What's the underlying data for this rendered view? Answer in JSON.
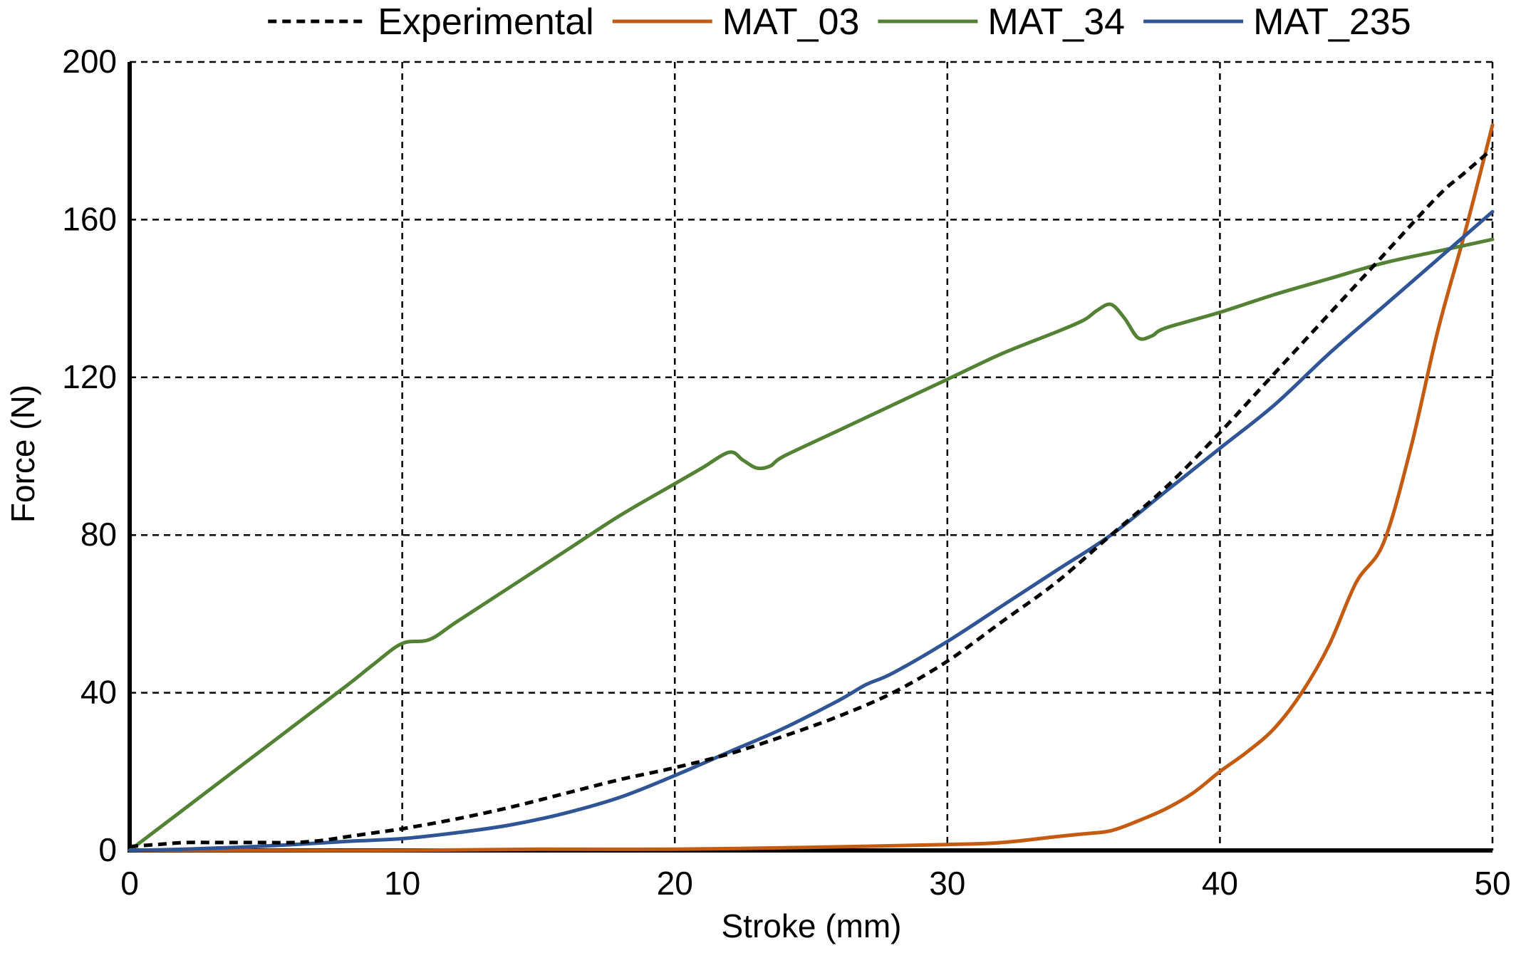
{
  "chart_data": {
    "type": "line",
    "title": "",
    "xlabel": "Stroke (mm)",
    "ylabel": "Force (N)",
    "xlim": [
      0,
      50
    ],
    "ylim": [
      0,
      200
    ],
    "x_ticks": [
      0,
      10,
      20,
      30,
      40,
      50
    ],
    "y_ticks": [
      0,
      40,
      80,
      120,
      160,
      200
    ],
    "grid": true,
    "grid_style": "dashed",
    "legend_position": "top",
    "series": [
      {
        "name": "Experimental",
        "color": "#000000",
        "line_style": "dashed",
        "x": [
          0,
          1,
          2,
          3,
          4,
          5,
          6,
          7,
          8,
          9,
          10,
          12,
          14,
          16,
          18,
          20,
          22,
          24,
          26,
          28,
          30,
          32,
          34,
          36,
          38,
          40,
          42,
          44,
          46,
          48,
          49,
          50
        ],
        "y": [
          1,
          1.5,
          2,
          2,
          2,
          2,
          2,
          2.5,
          3.5,
          4.5,
          5.5,
          8,
          11,
          14.5,
          18,
          21,
          24.5,
          29,
          34,
          40,
          48,
          58,
          68,
          80,
          92,
          106,
          121,
          136,
          151,
          166,
          172,
          178
        ]
      },
      {
        "name": "MAT_03",
        "color": "#C55A11",
        "line_style": "solid",
        "x": [
          0,
          5,
          10,
          15,
          20,
          25,
          30,
          32,
          34,
          35,
          36,
          37,
          38,
          39,
          40,
          41,
          42,
          43,
          44,
          45,
          46,
          47,
          48,
          49,
          50
        ],
        "y": [
          0,
          0,
          0,
          0.3,
          0.3,
          0.8,
          1.5,
          2,
          3.5,
          4.2,
          5,
          7.5,
          10.5,
          14.5,
          20,
          25,
          31,
          40,
          52,
          68,
          78,
          102,
          132,
          157,
          184
        ]
      },
      {
        "name": "MAT_34",
        "color": "#548235",
        "line_style": "solid",
        "x": [
          0,
          2,
          4,
          6,
          8,
          9,
          10,
          11,
          12,
          14,
          16,
          18,
          20,
          21,
          22,
          22.5,
          23,
          23.5,
          24,
          26,
          28,
          30,
          32,
          34,
          35,
          35.5,
          36,
          36.5,
          37,
          37.5,
          38,
          40,
          42,
          44,
          46,
          48,
          50
        ],
        "y": [
          0,
          10.5,
          21,
          31.5,
          42,
          47.5,
          52.5,
          53.5,
          58,
          67,
          76,
          85,
          93,
          97,
          101,
          99,
          97,
          97.5,
          100,
          106.5,
          113,
          119.5,
          126,
          131.5,
          134.5,
          137,
          138.5,
          135,
          130,
          130.5,
          132.5,
          136.5,
          141,
          145,
          149,
          152,
          155
        ]
      },
      {
        "name": "MAT_235",
        "color": "#2F5597",
        "line_style": "solid",
        "x": [
          0,
          2,
          4,
          6,
          8,
          10,
          12,
          14,
          16,
          18,
          20,
          22,
          24,
          26,
          27,
          28,
          30,
          32,
          34,
          36,
          38,
          40,
          42,
          44,
          46,
          48,
          50
        ],
        "y": [
          0,
          0.3,
          0.8,
          1.5,
          2.3,
          3,
          4.5,
          6.5,
          9.5,
          13.5,
          19,
          25,
          31,
          38,
          42,
          45,
          53,
          62,
          71,
          80,
          91,
          102,
          113,
          126,
          138,
          150,
          162
        ]
      }
    ]
  }
}
